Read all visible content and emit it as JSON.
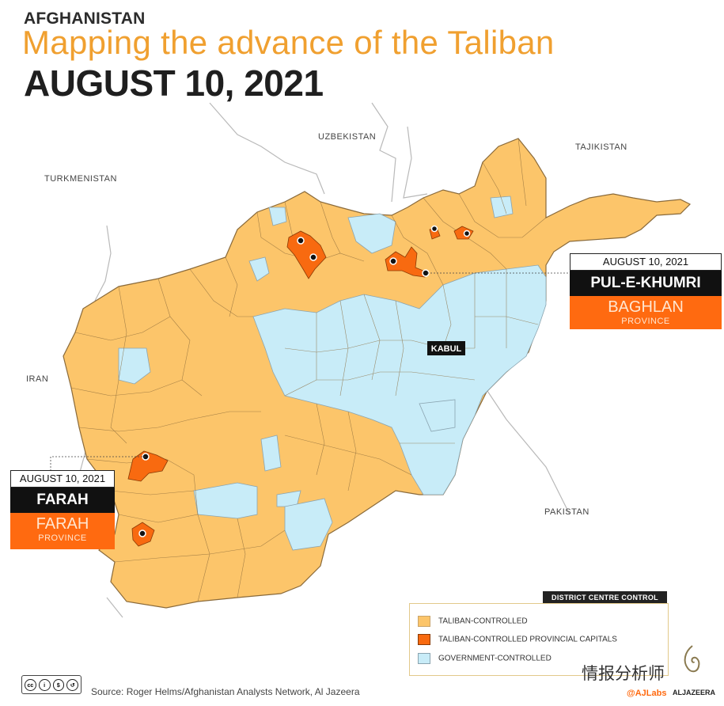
{
  "header": {
    "country": "AFGHANISTAN",
    "title": "Mapping the advance of the Taliban",
    "date": "AUGUST 10, 2021"
  },
  "neighbours": {
    "uzbekistan": "UZBEKISTAN",
    "tajikistan": "TAJIKISTAN",
    "turkmenistan": "TURKMENISTAN",
    "iran": "IRAN",
    "pakistan": "PAKISTAN"
  },
  "capital_label": "KABUL",
  "callouts": {
    "north": {
      "date": "AUGUST 10, 2021",
      "city": "PUL-E-KHUMRI",
      "province": "BAGHLAN",
      "province_word": "PROVINCE"
    },
    "west": {
      "date": "AUGUST 10, 2021",
      "city": "FARAH",
      "province": "FARAH",
      "province_word": "PROVINCE"
    }
  },
  "legend": {
    "title": "DISTRICT CENTRE CONTROL",
    "items": [
      {
        "label": "TALIBAN-CONTROLLED",
        "color": "#fcc56a"
      },
      {
        "label": "TALIBAN-CONTROLLED PROVINCIAL CAPITALS",
        "color": "#f86a10"
      },
      {
        "label": "GOVERNMENT-CONTROLLED",
        "color": "#c8ecf8"
      }
    ]
  },
  "source": "Source: Roger Helms/Afghanistan Analysts Network, Al Jazeera",
  "branding": {
    "license": "cc-by-nc-sa-icon",
    "watermark": "情报分析师",
    "ajlabs": "@AJLabs",
    "aljazeera": "ALJAZEERA"
  },
  "colors": {
    "taliban": "#fcc56a",
    "capital": "#f86a10",
    "government": "#c8ecf8",
    "title": "#f0a030"
  }
}
